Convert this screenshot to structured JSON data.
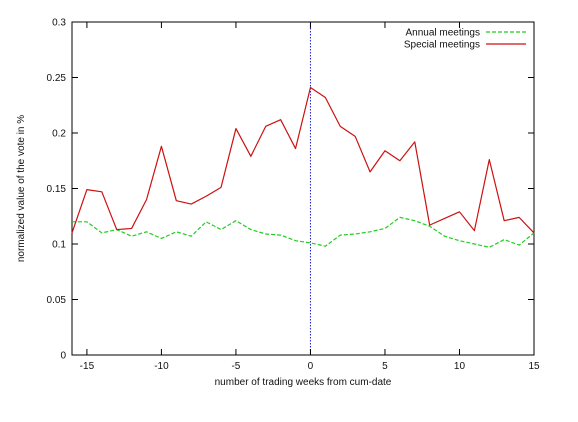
{
  "chart_data": {
    "type": "line",
    "title": "",
    "xlabel": "number of trading weeks from cum-date",
    "ylabel": "normalized value of the vote in %",
    "xlim": [
      -16,
      15
    ],
    "ylim": [
      0,
      0.3
    ],
    "grid": false,
    "legend_position": "top-right",
    "x_ticks": [
      -15,
      -10,
      -5,
      0,
      5,
      10,
      15
    ],
    "x_tick_labels": [
      "-15",
      "-10",
      "-5",
      "0",
      "5",
      "10",
      "15"
    ],
    "y_ticks": [
      0,
      0.05,
      0.1,
      0.15,
      0.2,
      0.25,
      0.3
    ],
    "y_tick_labels": [
      "0",
      "0.05",
      "0.1",
      "0.15",
      "0.2",
      "0.25",
      "0.3"
    ],
    "reference_line": {
      "x": 0,
      "color": "#2222cc"
    },
    "series": [
      {
        "name": "Annual meetings",
        "color": "#22cc22",
        "dashed": true,
        "x": [
          -16,
          -15,
          -14,
          -13,
          -12,
          -11,
          -10,
          -9,
          -8,
          -7,
          -6,
          -5,
          -4,
          -3,
          -2,
          -1,
          0,
          1,
          2,
          3,
          4,
          5,
          6,
          7,
          8,
          9,
          10,
          11,
          12,
          13,
          14,
          15
        ],
        "y": [
          0.12,
          0.12,
          0.11,
          0.113,
          0.107,
          0.111,
          0.105,
          0.111,
          0.107,
          0.12,
          0.113,
          0.121,
          0.113,
          0.109,
          0.108,
          0.103,
          0.101,
          0.098,
          0.108,
          0.109,
          0.111,
          0.114,
          0.124,
          0.121,
          0.116,
          0.107,
          0.103,
          0.1,
          0.097,
          0.104,
          0.099,
          0.11
        ]
      },
      {
        "name": "Special meetings",
        "color": "#cc1111",
        "dashed": false,
        "x": [
          -16,
          -15,
          -14,
          -13,
          -12,
          -11,
          -10,
          -9,
          -8,
          -7,
          -6,
          -5,
          -4,
          -3,
          -2,
          -1,
          0,
          1,
          2,
          3,
          4,
          5,
          6,
          7,
          8,
          9,
          10,
          11,
          12,
          13,
          14,
          15
        ],
        "y": [
          0.11,
          0.149,
          0.147,
          0.113,
          0.114,
          0.14,
          0.188,
          0.139,
          0.136,
          0.143,
          0.151,
          0.204,
          0.179,
          0.206,
          0.212,
          0.186,
          0.241,
          0.232,
          0.206,
          0.197,
          0.165,
          0.184,
          0.175,
          0.192,
          0.117,
          0.123,
          0.129,
          0.112,
          0.176,
          0.121,
          0.124,
          0.11
        ]
      }
    ]
  }
}
